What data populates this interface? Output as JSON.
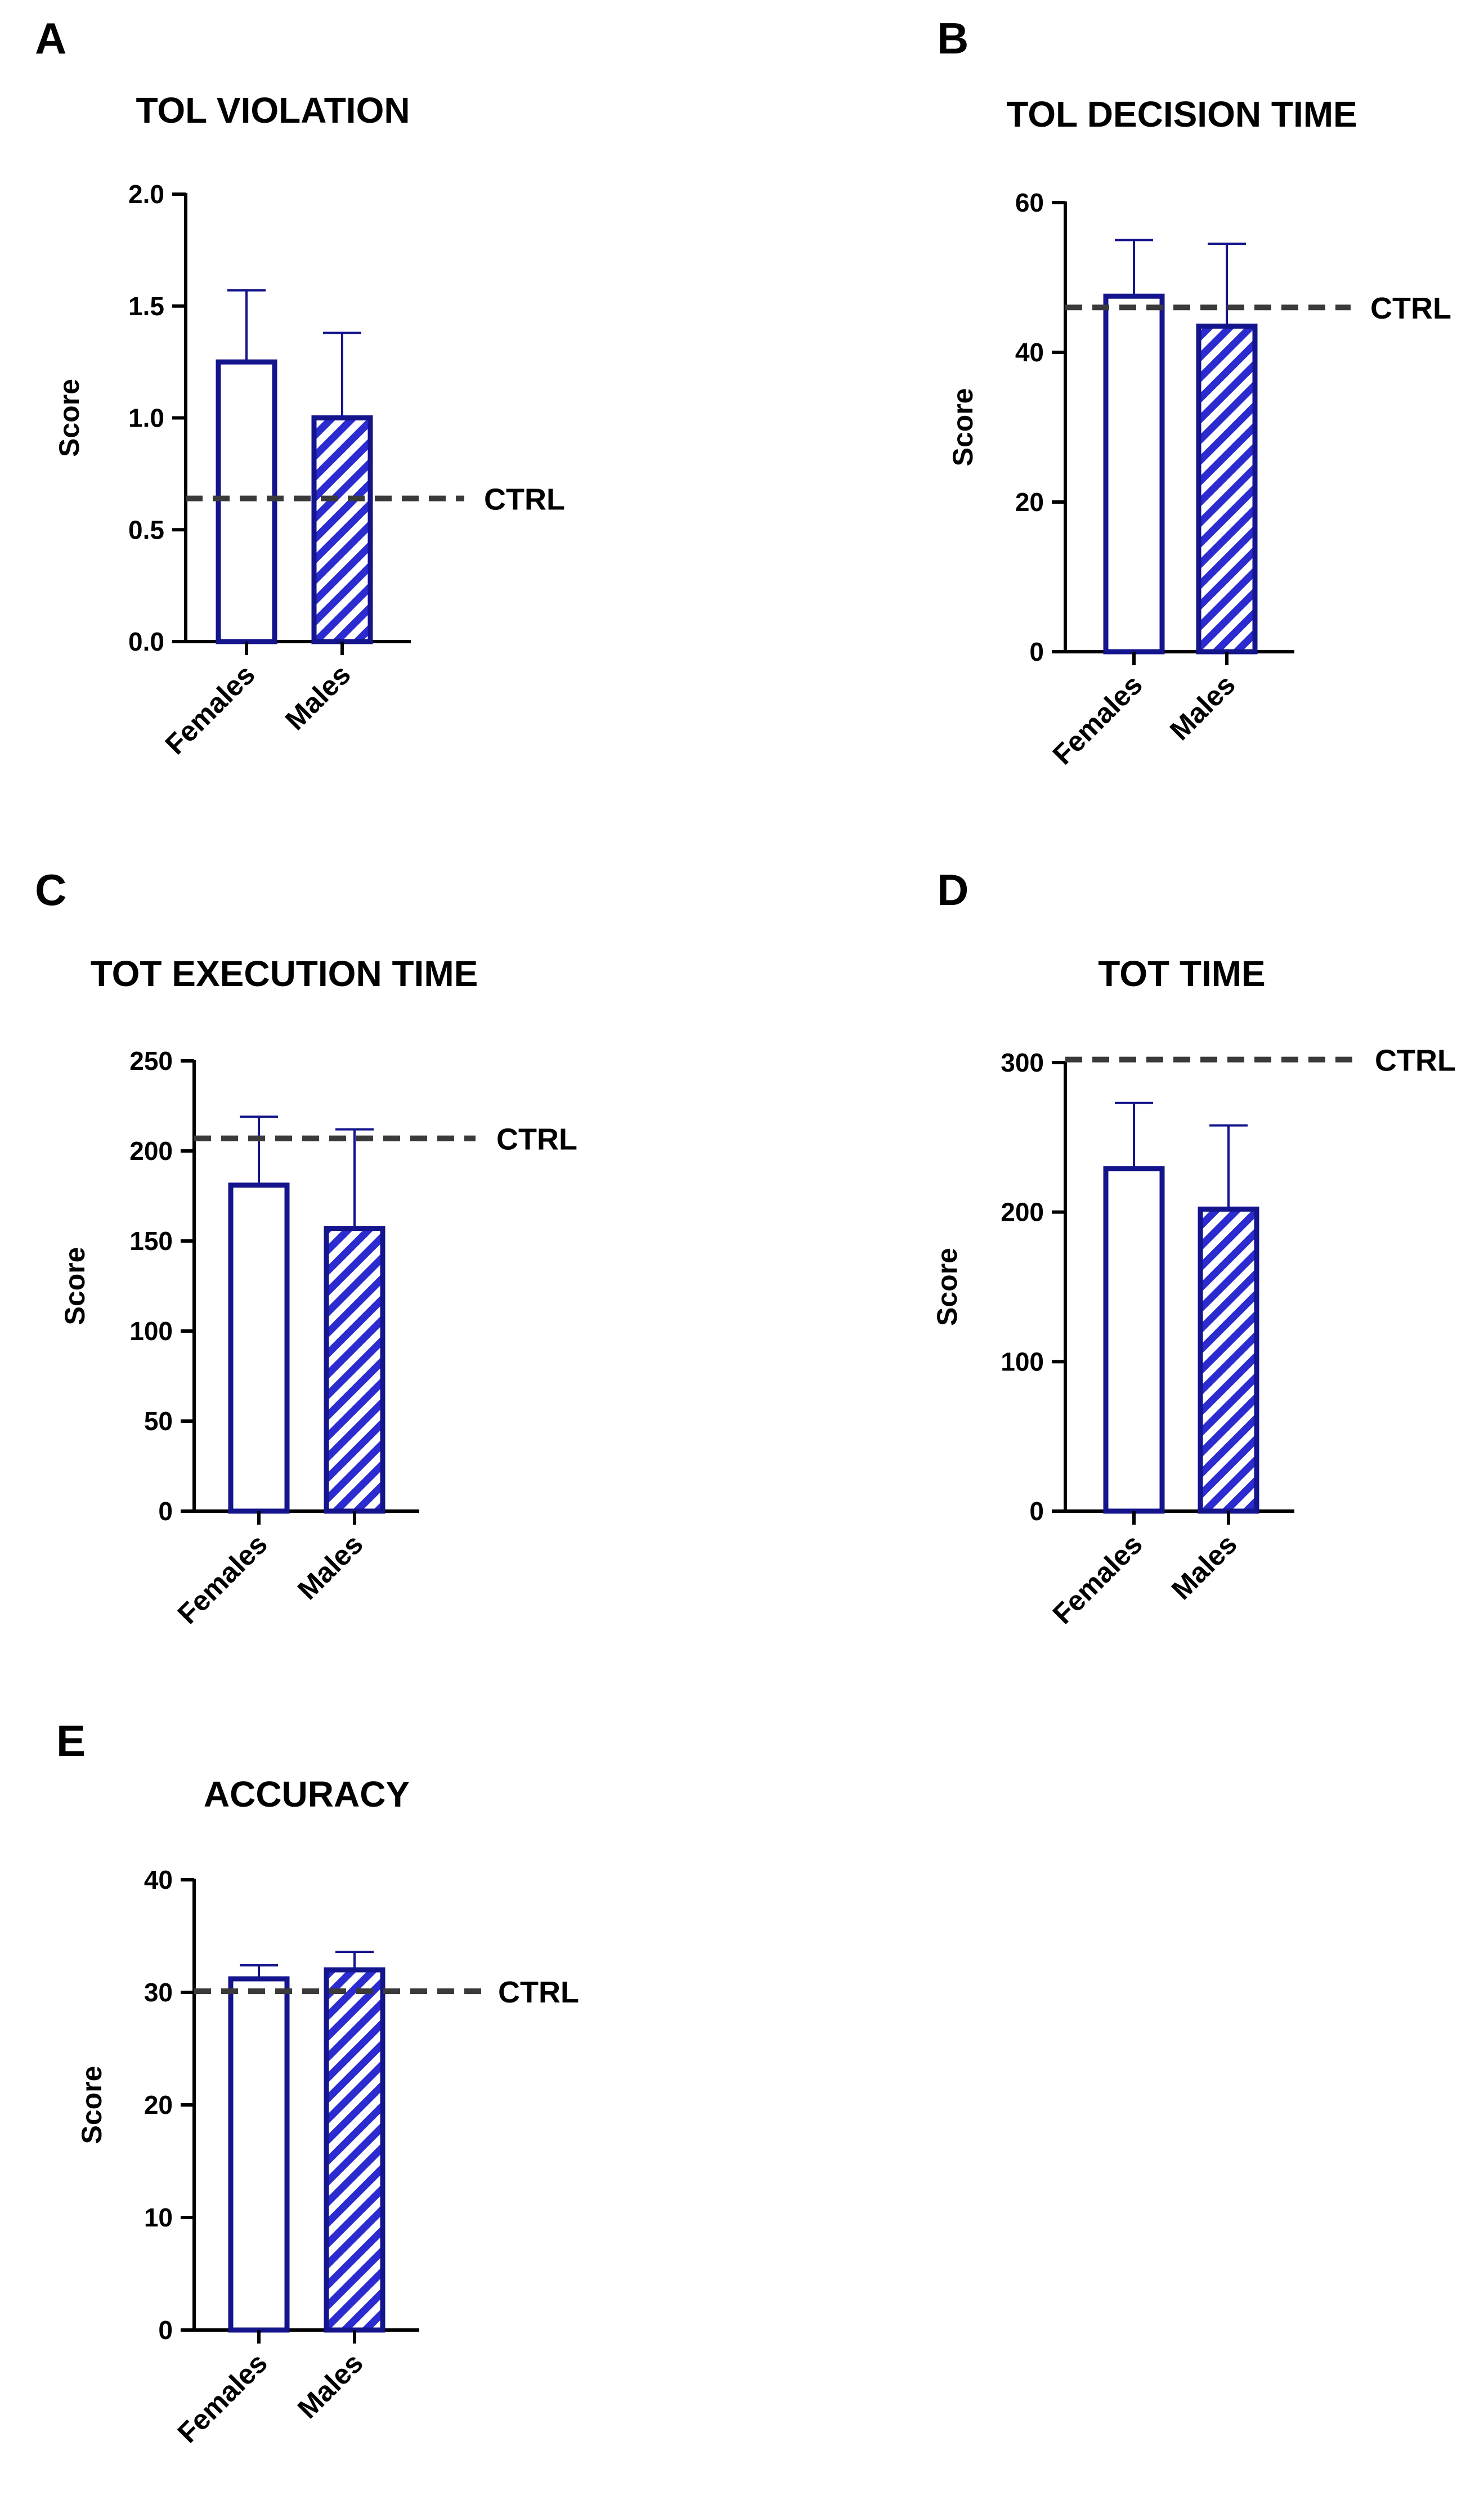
{
  "colors": {
    "bar_stroke": "#14148c",
    "error_bar": "#14148c",
    "hatch": "#2b2bd0",
    "ctrl_line": "#3a3a3a",
    "axis": "#000000"
  },
  "chart_data": [
    {
      "panel": "A",
      "type": "bar",
      "title": "TOL VIOLATION",
      "ylabel": "Score",
      "ylim": [
        0,
        2.0
      ],
      "yticks": [
        "0.0",
        "0.5",
        "1.0",
        "1.5",
        "2.0"
      ],
      "categories": [
        "Females",
        "Males"
      ],
      "values": [
        1.25,
        1.0
      ],
      "errors": [
        0.32,
        0.38
      ],
      "patterns": [
        "solid",
        "hatched"
      ],
      "ctrl": {
        "label": "CTRL",
        "value": 0.64
      }
    },
    {
      "panel": "B",
      "type": "bar",
      "title": "TOL DECISION TIME",
      "ylabel": "Score",
      "ylim": [
        0,
        60
      ],
      "yticks": [
        "0",
        "20",
        "40",
        "60"
      ],
      "categories": [
        "Females",
        "Males"
      ],
      "values": [
        47.5,
        43.5
      ],
      "errors": [
        7.5,
        11.0
      ],
      "patterns": [
        "solid",
        "hatched"
      ],
      "ctrl": {
        "label": "CTRL",
        "value": 46
      }
    },
    {
      "panel": "C",
      "type": "bar",
      "title": "TOT EXECUTION TIME",
      "ylabel": "Score",
      "ylim": [
        0,
        250
      ],
      "yticks": [
        "0",
        "50",
        "100",
        "150",
        "200",
        "250"
      ],
      "categories": [
        "Females",
        "Males"
      ],
      "values": [
        181,
        157
      ],
      "errors": [
        38,
        55
      ],
      "patterns": [
        "solid",
        "hatched"
      ],
      "ctrl": {
        "label": "CTRL",
        "value": 207
      }
    },
    {
      "panel": "D",
      "type": "bar",
      "title": "TOT TIME",
      "ylabel": "Score",
      "ylim": [
        0,
        300
      ],
      "yticks": [
        "0",
        "100",
        "200",
        "300"
      ],
      "categories": [
        "Females",
        "Males"
      ],
      "values": [
        229,
        202
      ],
      "errors": [
        44,
        56
      ],
      "patterns": [
        "solid",
        "hatched"
      ],
      "ctrl": {
        "label": "CTRL",
        "value": 302
      }
    },
    {
      "panel": "E",
      "type": "bar",
      "title": "ACCURACY",
      "ylabel": "Score",
      "ylim": [
        0,
        40
      ],
      "yticks": [
        "0",
        "10",
        "20",
        "30",
        "40"
      ],
      "categories": [
        "Females",
        "Males"
      ],
      "values": [
        31.2,
        32.0
      ],
      "errors": [
        1.2,
        1.6
      ],
      "patterns": [
        "solid",
        "hatched"
      ],
      "ctrl": {
        "label": "CTRL",
        "value": 30.1
      }
    }
  ]
}
